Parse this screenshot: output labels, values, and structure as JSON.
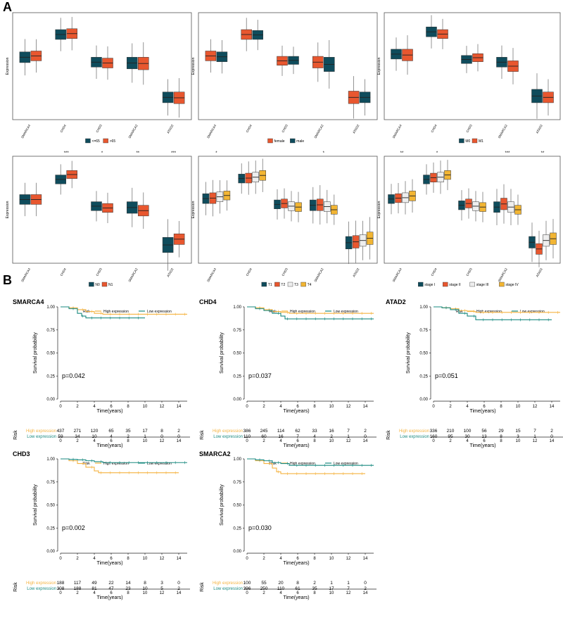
{
  "panel_labels": {
    "A": "A",
    "B": "B"
  },
  "colors": {
    "teal": "#0f4c5c",
    "orange": "#e8572f",
    "white_box": "#eeeeee",
    "gold": "#f2b533",
    "km_high": "#f5b341",
    "km_low": "#1a8a80"
  },
  "chart_data": [
    {
      "type": "box",
      "panel": "A",
      "ylabel": "Expression",
      "categories": [
        "SMARCA4",
        "CHD4",
        "CHD3",
        "SMARCA2",
        "ATAD2"
      ],
      "significance": [
        "",
        "",
        "",
        "",
        ""
      ],
      "legend": {
        "title": "",
        "items": [
          {
            "label": "<=65",
            "color": "#0f4c5c"
          },
          {
            "label": ">65",
            "color": "#e8572f"
          }
        ]
      },
      "boxes": [
        [
          [
            -0.3,
            0.3
          ],
          [
            -0.2,
            0.35
          ]
        ],
        [
          [
            1.0,
            1.55
          ],
          [
            1.05,
            1.6
          ]
        ],
        [
          [
            -0.55,
            0.0
          ],
          [
            -0.6,
            -0.05
          ]
        ],
        [
          [
            -0.65,
            0.0
          ],
          [
            -0.7,
            0.0
          ]
        ],
        [
          [
            -2.55,
            -1.95
          ],
          [
            -2.6,
            -1.95
          ]
        ]
      ]
    },
    {
      "type": "box",
      "panel": "A",
      "ylabel": "Expression",
      "categories": [
        "SMARCA4",
        "CHD4",
        "CHD3",
        "SMARCA2",
        "ATAD2"
      ],
      "significance": [
        "",
        "",
        "",
        "",
        ""
      ],
      "legend": {
        "title": "",
        "items": [
          {
            "label": "female",
            "color": "#e8572f"
          },
          {
            "label": "male",
            "color": "#0f4c5c"
          }
        ]
      },
      "boxes": [
        [
          [
            -0.2,
            0.35
          ],
          [
            -0.25,
            0.3
          ]
        ],
        [
          [
            1.0,
            1.55
          ],
          [
            1.0,
            1.5
          ]
        ],
        [
          [
            -0.45,
            0.05
          ],
          [
            -0.4,
            0.05
          ]
        ],
        [
          [
            -0.6,
            0.05
          ],
          [
            -0.8,
            0.0
          ]
        ],
        [
          [
            -2.6,
            -1.9
          ],
          [
            -2.55,
            -1.95
          ]
        ]
      ]
    },
    {
      "type": "box",
      "panel": "A",
      "ylabel": "Expression",
      "categories": [
        "SMARCA4",
        "CHD4",
        "CHD3",
        "SMARCA2",
        "ATAD2"
      ],
      "significance": [
        "",
        "",
        "",
        "",
        ""
      ],
      "legend": {
        "title": "",
        "items": [
          {
            "label": "M0",
            "color": "#0f4c5c"
          },
          {
            "label": "M1",
            "color": "#e8572f"
          }
        ]
      },
      "boxes": [
        [
          [
            -0.1,
            0.45
          ],
          [
            -0.2,
            0.45
          ]
        ],
        [
          [
            1.15,
            1.7
          ],
          [
            1.05,
            1.55
          ]
        ],
        [
          [
            -0.35,
            0.1
          ],
          [
            -0.25,
            0.2
          ]
        ],
        [
          [
            -0.55,
            0.0
          ],
          [
            -0.8,
            -0.2
          ]
        ],
        [
          [
            -2.55,
            -1.8
          ],
          [
            -2.55,
            -1.95
          ]
        ]
      ]
    },
    {
      "type": "box",
      "panel": "A",
      "ylabel": "Expression",
      "categories": [
        "SMARCA4",
        "CHD4",
        "CHD3",
        "SMARCA2",
        "ATAD2"
      ],
      "significance": [
        "",
        "***",
        "*",
        "**",
        "***"
      ],
      "legend": {
        "title": "",
        "items": [
          {
            "label": "N0",
            "color": "#0f4c5c"
          },
          {
            "label": "N1",
            "color": "#e8572f"
          }
        ]
      },
      "boxes": [
        [
          [
            -0.2,
            0.35
          ],
          [
            -0.2,
            0.35
          ]
        ],
        [
          [
            0.95,
            1.45
          ],
          [
            1.25,
            1.7
          ]
        ],
        [
          [
            -0.55,
            -0.05
          ],
          [
            -0.65,
            -0.15
          ]
        ],
        [
          [
            -0.7,
            -0.05
          ],
          [
            -0.85,
            -0.25
          ]
        ],
        [
          [
            -2.9,
            -2.05
          ],
          [
            -2.45,
            -1.85
          ]
        ]
      ]
    },
    {
      "type": "box",
      "panel": "A",
      "ylabel": "Expression",
      "categories": [
        "SMARCA4",
        "CHD4",
        "CHD3",
        "SMARCA2",
        "ATAD2"
      ],
      "significance": [
        "*",
        "",
        "",
        "*",
        ""
      ],
      "legend": {
        "title": "",
        "items": [
          {
            "label": "T1",
            "color": "#0f4c5c"
          },
          {
            "label": "T2",
            "color": "#e8572f"
          },
          {
            "label": "T3",
            "color": "#eeeeee"
          },
          {
            "label": "T4",
            "color": "#f2b533"
          }
        ]
      },
      "boxes": [
        [
          [
            -0.15,
            0.4
          ],
          [
            -0.15,
            0.45
          ],
          [
            -0.05,
            0.5
          ],
          [
            0.05,
            0.55
          ]
        ],
        [
          [
            1.0,
            1.5
          ],
          [
            1.0,
            1.55
          ],
          [
            1.05,
            1.6
          ],
          [
            1.15,
            1.7
          ]
        ],
        [
          [
            -0.45,
            0.05
          ],
          [
            -0.4,
            0.1
          ],
          [
            -0.55,
            -0.05
          ],
          [
            -0.6,
            -0.1
          ]
        ],
        [
          [
            -0.55,
            0.05
          ],
          [
            -0.55,
            0.1
          ],
          [
            -0.6,
            -0.05
          ],
          [
            -0.75,
            -0.25
          ]
        ],
        [
          [
            -2.7,
            -2.0
          ],
          [
            -2.65,
            -1.95
          ],
          [
            -2.55,
            -1.9
          ],
          [
            -2.45,
            -1.75
          ]
        ]
      ]
    },
    {
      "type": "box",
      "panel": "A",
      "ylabel": "Expression",
      "categories": [
        "SMARCA4",
        "CHD4",
        "CHD3",
        "SMARCA2",
        "ATAD2"
      ],
      "significance": [
        "**",
        "*",
        "",
        "***",
        "**"
      ],
      "legend": {
        "title": "",
        "items": [
          {
            "label": "stage I",
            "color": "#0f4c5c"
          },
          {
            "label": "stage II",
            "color": "#e8572f"
          },
          {
            "label": "stage III",
            "color": "#eeeeee"
          },
          {
            "label": "stage IV",
            "color": "#f2b533"
          }
        ]
      },
      "boxes": [
        [
          [
            -0.15,
            0.35
          ],
          [
            -0.1,
            0.4
          ],
          [
            -0.1,
            0.45
          ],
          [
            0.0,
            0.55
          ]
        ],
        [
          [
            0.95,
            1.45
          ],
          [
            1.05,
            1.55
          ],
          [
            1.05,
            1.6
          ],
          [
            1.2,
            1.7
          ]
        ],
        [
          [
            -0.5,
            0.0
          ],
          [
            -0.4,
            0.1
          ],
          [
            -0.55,
            -0.05
          ],
          [
            -0.6,
            -0.1
          ]
        ],
        [
          [
            -0.65,
            -0.05
          ],
          [
            -0.5,
            0.15
          ],
          [
            -0.65,
            -0.05
          ],
          [
            -0.75,
            -0.25
          ]
        ],
        [
          [
            -2.65,
            -2.0
          ],
          [
            -3.0,
            -2.4
          ],
          [
            -2.55,
            -1.9
          ],
          [
            -2.45,
            -1.8
          ]
        ]
      ]
    },
    {
      "type": "line",
      "panel": "B",
      "title": "SMARCA4",
      "xlabel": "Time(years)",
      "ylabel": "Survival probability",
      "xlim": [
        0,
        15
      ],
      "ylim": [
        0,
        1
      ],
      "legend_title": "Risk",
      "pvalue": "p=0.042",
      "series": [
        {
          "name": "High expression",
          "color": "#f5b341",
          "x": [
            0,
            1,
            2,
            3,
            4,
            5,
            6,
            15
          ],
          "y": [
            1.0,
            0.99,
            0.97,
            0.95,
            0.93,
            0.92,
            0.92,
            0.92
          ]
        },
        {
          "name": "Low expression",
          "color": "#1a8a80",
          "x": [
            0,
            1,
            2,
            2.5,
            3,
            10
          ],
          "y": [
            1.0,
            0.98,
            0.93,
            0.9,
            0.88,
            0.88
          ]
        }
      ],
      "risk_table": {
        "times": [
          "0",
          "2",
          "4",
          "6",
          "8",
          "10",
          "12",
          "14"
        ],
        "rows": [
          {
            "label": "High expression",
            "values": [
              "437",
              "271",
              "120",
              "65",
              "35",
              "17",
              "8",
              "2"
            ]
          },
          {
            "label": "Low expression",
            "values": [
              "59",
              "34",
              "10",
              "4",
              "2",
              "1",
              "0",
              "0"
            ]
          }
        ],
        "title": "Risk"
      }
    },
    {
      "type": "line",
      "panel": "B",
      "title": "CHD4",
      "xlabel": "Time(years)",
      "ylabel": "Survival probability",
      "xlim": [
        0,
        15
      ],
      "ylim": [
        0,
        1
      ],
      "legend_title": "Risk",
      "pvalue": "p=0.037",
      "series": [
        {
          "name": "High expression",
          "color": "#f5b341",
          "x": [
            0,
            1,
            2,
            3,
            4,
            5,
            15
          ],
          "y": [
            1.0,
            0.99,
            0.97,
            0.95,
            0.94,
            0.93,
            0.93
          ]
        },
        {
          "name": "Low expression",
          "color": "#1a8a80",
          "x": [
            0,
            1,
            2,
            3,
            4,
            4.5,
            15
          ],
          "y": [
            1.0,
            0.98,
            0.96,
            0.93,
            0.9,
            0.87,
            0.87
          ]
        }
      ],
      "risk_table": {
        "times": [
          "0",
          "2",
          "4",
          "6",
          "8",
          "10",
          "12",
          "14"
        ],
        "rows": [
          {
            "label": "High expression",
            "values": [
              "386",
              "245",
              "114",
              "62",
              "33",
              "16",
              "7",
              "2"
            ]
          },
          {
            "label": "Low expression",
            "values": [
              "110",
              "60",
              "16",
              "7",
              "4",
              "2",
              "1",
              "0"
            ]
          }
        ],
        "title": "Risk"
      }
    },
    {
      "type": "line",
      "panel": "B",
      "title": "ATAD2",
      "xlabel": "Time(years)",
      "ylabel": "Survival probability",
      "xlim": [
        0,
        15
      ],
      "ylim": [
        0,
        1
      ],
      "legend_title": "Risk",
      "pvalue": "p=0.051",
      "series": [
        {
          "name": "High expression",
          "color": "#f5b341",
          "x": [
            0,
            1,
            2,
            3,
            4,
            5,
            15
          ],
          "y": [
            1.0,
            0.99,
            0.98,
            0.96,
            0.95,
            0.94,
            0.94
          ]
        },
        {
          "name": "Low expression",
          "color": "#1a8a80",
          "x": [
            0,
            1,
            2,
            3,
            4,
            5,
            14
          ],
          "y": [
            1.0,
            0.99,
            0.97,
            0.93,
            0.9,
            0.86,
            0.86
          ]
        }
      ],
      "risk_table": {
        "times": [
          "0",
          "2",
          "4",
          "6",
          "8",
          "10",
          "12",
          "14"
        ],
        "rows": [
          {
            "label": "High expression",
            "values": [
              "336",
              "210",
              "100",
              "56",
              "29",
              "15",
              "7",
              "2"
            ]
          },
          {
            "label": "Low expression",
            "values": [
              "160",
              "95",
              "30",
              "13",
              "8",
              "3",
              "1",
              "0"
            ]
          }
        ],
        "title": "Risk"
      }
    },
    {
      "type": "line",
      "panel": "B",
      "title": "CHD3",
      "xlabel": "Time(years)",
      "ylabel": "Survival probability",
      "xlim": [
        0,
        15
      ],
      "ylim": [
        0,
        1
      ],
      "legend_title": "Risk",
      "pvalue": "p=0.002",
      "series": [
        {
          "name": "High expression",
          "color": "#f5b341",
          "x": [
            0,
            1,
            2,
            3,
            4,
            4.5,
            14
          ],
          "y": [
            1.0,
            0.98,
            0.95,
            0.91,
            0.87,
            0.85,
            0.85
          ]
        },
        {
          "name": "Low expression",
          "color": "#1a8a80",
          "x": [
            0,
            1,
            2,
            3,
            4,
            5,
            15
          ],
          "y": [
            1.0,
            0.995,
            0.99,
            0.98,
            0.97,
            0.96,
            0.96
          ]
        }
      ],
      "risk_table": {
        "times": [
          "0",
          "2",
          "4",
          "6",
          "8",
          "10",
          "12",
          "14"
        ],
        "rows": [
          {
            "label": "High expression",
            "values": [
              "188",
              "117",
              "49",
              "22",
              "14",
              "8",
              "3",
              "0"
            ]
          },
          {
            "label": "Low expression",
            "values": [
              "308",
              "188",
              "81",
              "47",
              "23",
              "10",
              "5",
              "2"
            ]
          }
        ],
        "title": "Risk"
      }
    },
    {
      "type": "line",
      "panel": "B",
      "title": "SMARCA2",
      "xlabel": "Time(years)",
      "ylabel": "Survival probability",
      "xlim": [
        0,
        15
      ],
      "ylim": [
        0,
        1
      ],
      "legend_title": "Risk",
      "pvalue": "p=0.030",
      "series": [
        {
          "name": "High expression",
          "color": "#f5b341",
          "x": [
            0,
            1,
            2,
            3,
            3.5,
            4,
            14
          ],
          "y": [
            1.0,
            0.98,
            0.95,
            0.9,
            0.86,
            0.84,
            0.84
          ]
        },
        {
          "name": "Low expression",
          "color": "#1a8a80",
          "x": [
            0,
            1,
            2,
            3,
            4,
            5,
            15
          ],
          "y": [
            1.0,
            0.99,
            0.98,
            0.96,
            0.95,
            0.93,
            0.93
          ]
        }
      ],
      "risk_table": {
        "times": [
          "0",
          "2",
          "4",
          "6",
          "8",
          "10",
          "12",
          "14"
        ],
        "rows": [
          {
            "label": "High expression",
            "values": [
              "100",
              "55",
              "20",
              "8",
              "2",
              "1",
              "1",
              "0"
            ]
          },
          {
            "label": "Low expression",
            "values": [
              "396",
              "250",
              "110",
              "61",
              "35",
              "17",
              "7",
              "2"
            ]
          }
        ],
        "title": "Risk"
      }
    }
  ]
}
